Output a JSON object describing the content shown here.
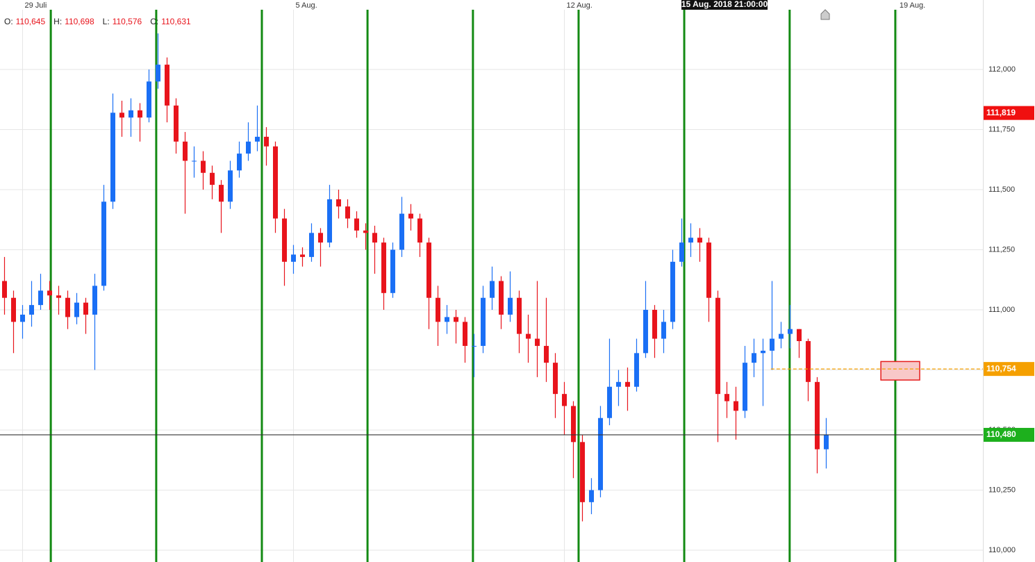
{
  "chart_data": {
    "type": "candlestick",
    "crosshair_label": "15 Aug. 2018 21:00:00",
    "ohlc_legend": [
      {
        "key": "O:",
        "value": "110,645"
      },
      {
        "key": "H:",
        "value": "110,698"
      },
      {
        "key": "L:",
        "value": "110,576"
      },
      {
        "key": "C:",
        "value": "110,631"
      }
    ],
    "up_color": "#1a6ff5",
    "down_color": "#e8141c",
    "x": [
      2,
      6,
      10,
      14,
      18,
      22,
      26,
      30,
      34,
      38,
      42,
      46,
      50,
      54,
      58,
      62,
      66,
      70,
      74,
      78,
      82,
      86,
      90,
      94,
      98,
      102,
      106,
      110,
      114,
      118,
      122,
      126,
      130,
      134,
      138,
      142,
      146,
      150,
      154,
      158,
      162,
      166,
      170,
      174,
      178,
      182,
      186,
      190,
      194,
      198,
      202,
      206,
      210,
      214,
      218,
      222,
      226,
      230,
      234,
      238,
      242,
      246,
      250,
      254,
      258,
      262,
      266,
      270,
      274,
      278,
      282,
      286,
      290,
      294,
      298,
      302,
      306,
      310,
      314,
      318,
      322,
      326,
      330,
      334,
      338,
      342,
      346,
      350,
      354,
      358,
      362,
      366
    ],
    "open": [
      111.12,
      111.05,
      110.95,
      110.98,
      111.02,
      111.08,
      111.06,
      111.05,
      110.97,
      111.03,
      110.98,
      111.1,
      111.45,
      111.82,
      111.8,
      111.83,
      111.8,
      111.95,
      112.02,
      111.85,
      111.7,
      111.62,
      111.62,
      111.57,
      111.52,
      111.45,
      111.58,
      111.65,
      111.7,
      111.72,
      111.68,
      111.38,
      111.2,
      111.23,
      111.22,
      111.32,
      111.28,
      111.46,
      111.43,
      111.38,
      111.33,
      111.32,
      111.28,
      111.07,
      111.25,
      111.4,
      111.38,
      111.28,
      111.05,
      110.95,
      110.97,
      110.95,
      110.85,
      110.85,
      111.05,
      111.12,
      110.98,
      111.05,
      110.9,
      110.88,
      110.85,
      110.78,
      110.65,
      110.6,
      110.45,
      110.2,
      110.25,
      110.55,
      110.68,
      110.7,
      110.68,
      110.82,
      111.0,
      110.88,
      110.95,
      111.2,
      111.28,
      111.3,
      111.28,
      111.05,
      110.65,
      110.62,
      110.58,
      110.78,
      110.82,
      110.83,
      110.88,
      110.9,
      110.92,
      110.87,
      110.7,
      110.42
    ],
    "high": [
      111.22,
      111.08,
      111.02,
      111.12,
      111.15,
      111.12,
      111.1,
      111.08,
      111.07,
      111.05,
      111.15,
      111.52,
      111.9,
      111.87,
      111.88,
      111.86,
      112.0,
      112.15,
      112.05,
      111.88,
      111.74,
      111.68,
      111.66,
      111.6,
      111.54,
      111.62,
      111.7,
      111.78,
      111.85,
      111.76,
      111.7,
      111.42,
      111.27,
      111.26,
      111.36,
      111.34,
      111.52,
      111.5,
      111.46,
      111.41,
      111.36,
      111.35,
      111.3,
      111.28,
      111.47,
      111.44,
      111.4,
      111.3,
      111.1,
      111.02,
      111.0,
      110.97,
      110.9,
      111.1,
      111.18,
      111.14,
      111.16,
      111.08,
      110.98,
      111.12,
      111.05,
      110.82,
      110.7,
      110.62,
      110.48,
      110.3,
      110.6,
      110.88,
      110.75,
      110.76,
      110.88,
      111.12,
      111.02,
      111.0,
      111.25,
      111.38,
      111.36,
      111.34,
      111.3,
      111.08,
      110.7,
      110.68,
      110.85,
      110.88,
      110.88,
      111.12,
      110.95,
      111.02,
      110.92,
      110.88,
      110.72,
      110.55
    ],
    "low": [
      110.98,
      110.82,
      110.88,
      110.93,
      111.0,
      111.0,
      110.98,
      110.92,
      110.94,
      110.9,
      110.75,
      111.08,
      111.42,
      111.72,
      111.72,
      111.7,
      111.78,
      111.92,
      111.78,
      111.65,
      111.4,
      111.55,
      111.5,
      111.46,
      111.32,
      111.42,
      111.55,
      111.62,
      111.66,
      111.6,
      111.32,
      111.1,
      111.15,
      111.18,
      111.2,
      111.18,
      111.26,
      111.38,
      111.34,
      111.3,
      111.25,
      111.15,
      111.0,
      111.05,
      111.22,
      111.33,
      111.22,
      110.92,
      110.85,
      110.9,
      110.86,
      110.78,
      110.72,
      110.82,
      111.0,
      110.92,
      110.95,
      110.82,
      110.78,
      110.72,
      110.7,
      110.55,
      110.48,
      110.3,
      110.12,
      110.15,
      110.22,
      110.52,
      110.6,
      110.58,
      110.66,
      110.8,
      110.8,
      110.82,
      110.92,
      111.18,
      111.22,
      111.2,
      110.95,
      110.45,
      110.55,
      110.46,
      110.55,
      110.72,
      110.6,
      110.75,
      110.84,
      110.84,
      110.8,
      110.62,
      110.32,
      110.34
    ],
    "close": [
      111.05,
      110.95,
      110.98,
      111.02,
      111.08,
      111.06,
      111.05,
      110.97,
      111.03,
      110.98,
      111.1,
      111.45,
      111.82,
      111.8,
      111.83,
      111.8,
      111.95,
      112.02,
      111.85,
      111.7,
      111.62,
      111.62,
      111.57,
      111.52,
      111.45,
      111.58,
      111.65,
      111.7,
      111.72,
      111.68,
      111.38,
      111.2,
      111.23,
      111.22,
      111.32,
      111.28,
      111.46,
      111.43,
      111.38,
      111.33,
      111.32,
      111.28,
      111.07,
      111.25,
      111.4,
      111.38,
      111.28,
      111.05,
      110.95,
      110.97,
      110.95,
      110.85,
      110.85,
      111.05,
      111.12,
      110.98,
      111.05,
      110.9,
      110.88,
      110.85,
      110.78,
      110.65,
      110.6,
      110.45,
      110.2,
      110.25,
      110.55,
      110.68,
      110.7,
      110.68,
      110.82,
      111.0,
      110.88,
      110.95,
      111.2,
      111.28,
      111.3,
      111.28,
      111.05,
      110.65,
      110.62,
      110.58,
      110.78,
      110.82,
      110.83,
      110.88,
      110.9,
      110.92,
      110.87,
      110.7,
      110.42,
      110.48
    ],
    "xlim": [
      0,
      435.4
    ],
    "ylim": [
      109.951,
      112.289
    ],
    "xticks": [
      {
        "value": 10,
        "label": "29 Juli"
      },
      {
        "value": 130,
        "label": "5 Aug."
      },
      {
        "value": 250,
        "label": "12 Aug."
      },
      {
        "value": 397.5,
        "label": "19 Aug."
      }
    ],
    "yticks": [
      {
        "value": 110,
        "label": "110,000"
      },
      {
        "value": 110.25,
        "label": "110,250"
      },
      {
        "value": 110.5,
        "label": "110,500"
      },
      {
        "value": 110.75,
        "label": "110,750"
      },
      {
        "value": 111,
        "label": "111,000"
      },
      {
        "value": 111.25,
        "label": "111,250"
      },
      {
        "value": 111.5,
        "label": "111,500"
      },
      {
        "value": 111.75,
        "label": "111,750"
      },
      {
        "value": 112,
        "label": "112,000"
      }
    ],
    "grid": true,
    "cycle_lines": {
      "color": "#138a13",
      "x": [
        22.5,
        69.2,
        116,
        162.8,
        209.5,
        256.3,
        303.1,
        349.8,
        396.6
      ]
    },
    "price_labels": [
      {
        "value": 111.819,
        "label": "111,819",
        "color": "#f01010"
      },
      {
        "value": 110.48,
        "label": "110,480",
        "color": "#1db01d",
        "line": "solid",
        "line_color": "#333333",
        "line_start": 0
      },
      {
        "value": 110.754,
        "label": "110,754",
        "color": "#f5a000",
        "line": "dashed",
        "line_color": "#f5a000",
        "line_start": 341.5
      }
    ],
    "zone": {
      "x": [
        390.2,
        407.4
      ],
      "y": [
        110.708,
        110.785
      ],
      "stroke": "#e51c1c",
      "fill": "#f8c8c8"
    }
  }
}
